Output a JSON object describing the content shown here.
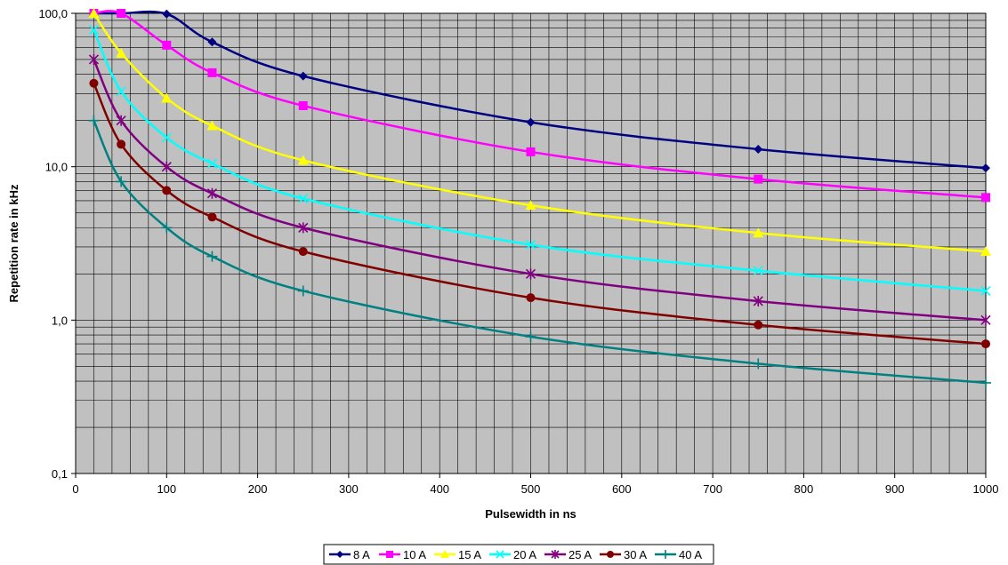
{
  "chart_data": {
    "type": "line",
    "xlabel": "Pulsewidth in ns",
    "ylabel": "Repetition rate in kHz",
    "xlim": [
      0,
      1000
    ],
    "ylim": [
      0.1,
      100
    ],
    "y_scale": "log",
    "grid": true,
    "plot_background": "#c0c0c0",
    "legend_position": "bottom",
    "x_ticks": [
      0,
      100,
      200,
      300,
      400,
      500,
      600,
      700,
      800,
      900,
      1000
    ],
    "x_tick_labels": [
      "0",
      "100",
      "200",
      "300",
      "400",
      "500",
      "600",
      "700",
      "800",
      "900",
      "1000"
    ],
    "y_ticks": [
      0.1,
      1,
      10,
      100
    ],
    "y_tick_labels": [
      "0,1",
      "1,0",
      "10,0",
      "100,0"
    ],
    "x": [
      20,
      50,
      100,
      150,
      250,
      500,
      750,
      1000
    ],
    "series": [
      {
        "name": "8 A",
        "color": "#000080",
        "marker": "diamond",
        "values": [
          100,
          100,
          99,
          65,
          39,
          19.5,
          13,
          9.8
        ]
      },
      {
        "name": "10 A",
        "color": "#ff00ff",
        "marker": "square",
        "values": [
          100,
          100,
          62,
          41,
          25,
          12.5,
          8.3,
          6.3
        ]
      },
      {
        "name": "15 A",
        "color": "#ffff00",
        "marker": "triangle",
        "values": [
          100,
          55,
          28,
          18.5,
          11,
          5.6,
          3.7,
          2.8
        ]
      },
      {
        "name": "20 A",
        "color": "#00ffff",
        "marker": "x",
        "values": [
          78,
          31,
          15.5,
          10.5,
          6.2,
          3.1,
          2.1,
          1.55
        ]
      },
      {
        "name": "25 A",
        "color": "#800080",
        "marker": "star",
        "values": [
          50,
          20,
          10,
          6.7,
          4,
          2,
          1.33,
          1.0
        ]
      },
      {
        "name": "30 A",
        "color": "#800000",
        "marker": "circle",
        "values": [
          35,
          14,
          7,
          4.7,
          2.8,
          1.4,
          0.93,
          0.7
        ]
      },
      {
        "name": "40 A",
        "color": "#008080",
        "marker": "plus",
        "values": [
          20,
          8,
          4,
          2.6,
          1.55,
          0.78,
          0.52,
          0.39
        ]
      }
    ]
  }
}
